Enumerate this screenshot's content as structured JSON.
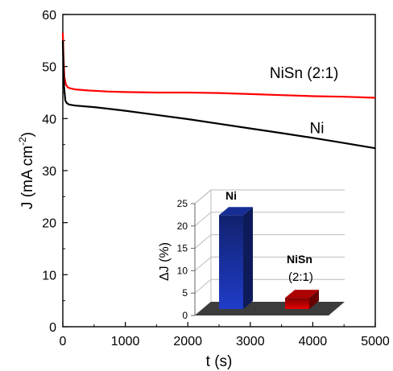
{
  "chart_data": [
    {
      "type": "line",
      "xlabel": "t (s)",
      "ylabel": {
        "base": "J (mA cm",
        "sup": "-2",
        "close": ")"
      },
      "xlim": [
        0,
        5000
      ],
      "ylim": [
        0,
        60
      ],
      "xticks": [
        0,
        1000,
        2000,
        3000,
        4000,
        5000
      ],
      "yticks": [
        0,
        10,
        20,
        30,
        40,
        50,
        60
      ],
      "grid": false,
      "series": [
        {
          "name": "NiSn (2:1)",
          "color": "#ff0000",
          "x": [
            0,
            10,
            25,
            50,
            80,
            120,
            200,
            400,
            700,
            1000,
            1500,
            2000,
            2500,
            3000,
            3500,
            4000,
            4500,
            5000
          ],
          "y": [
            56.5,
            52,
            48,
            46.5,
            46,
            45.8,
            45.6,
            45.4,
            45.2,
            45.1,
            45.0,
            45.0,
            44.9,
            44.7,
            44.5,
            44.3,
            44.2,
            44.0
          ]
        },
        {
          "name": "Ni",
          "color": "#000000",
          "x": [
            0,
            10,
            20,
            40,
            60,
            100,
            200,
            500,
            1000,
            1500,
            2000,
            2500,
            3000,
            3500,
            4000,
            4500,
            5000
          ],
          "y": [
            55,
            50,
            46,
            43.5,
            43,
            42.7,
            42.5,
            42.2,
            41.5,
            40.7,
            39.9,
            39.0,
            38.1,
            37.2,
            36.3,
            35.3,
            34.3
          ]
        }
      ]
    },
    {
      "type": "bar",
      "ylabel": "ΔJ (%)",
      "ylim": [
        0,
        25
      ],
      "yticks": [
        0,
        5,
        10,
        15,
        20,
        25
      ],
      "categories": [
        {
          "label": "Ni",
          "sublabel": ""
        },
        {
          "label": "NiSn",
          "sublabel": "(2:1)"
        }
      ],
      "values": [
        21,
        2.5
      ],
      "colors": [
        "#1f3cc8",
        "#e60000"
      ]
    }
  ]
}
